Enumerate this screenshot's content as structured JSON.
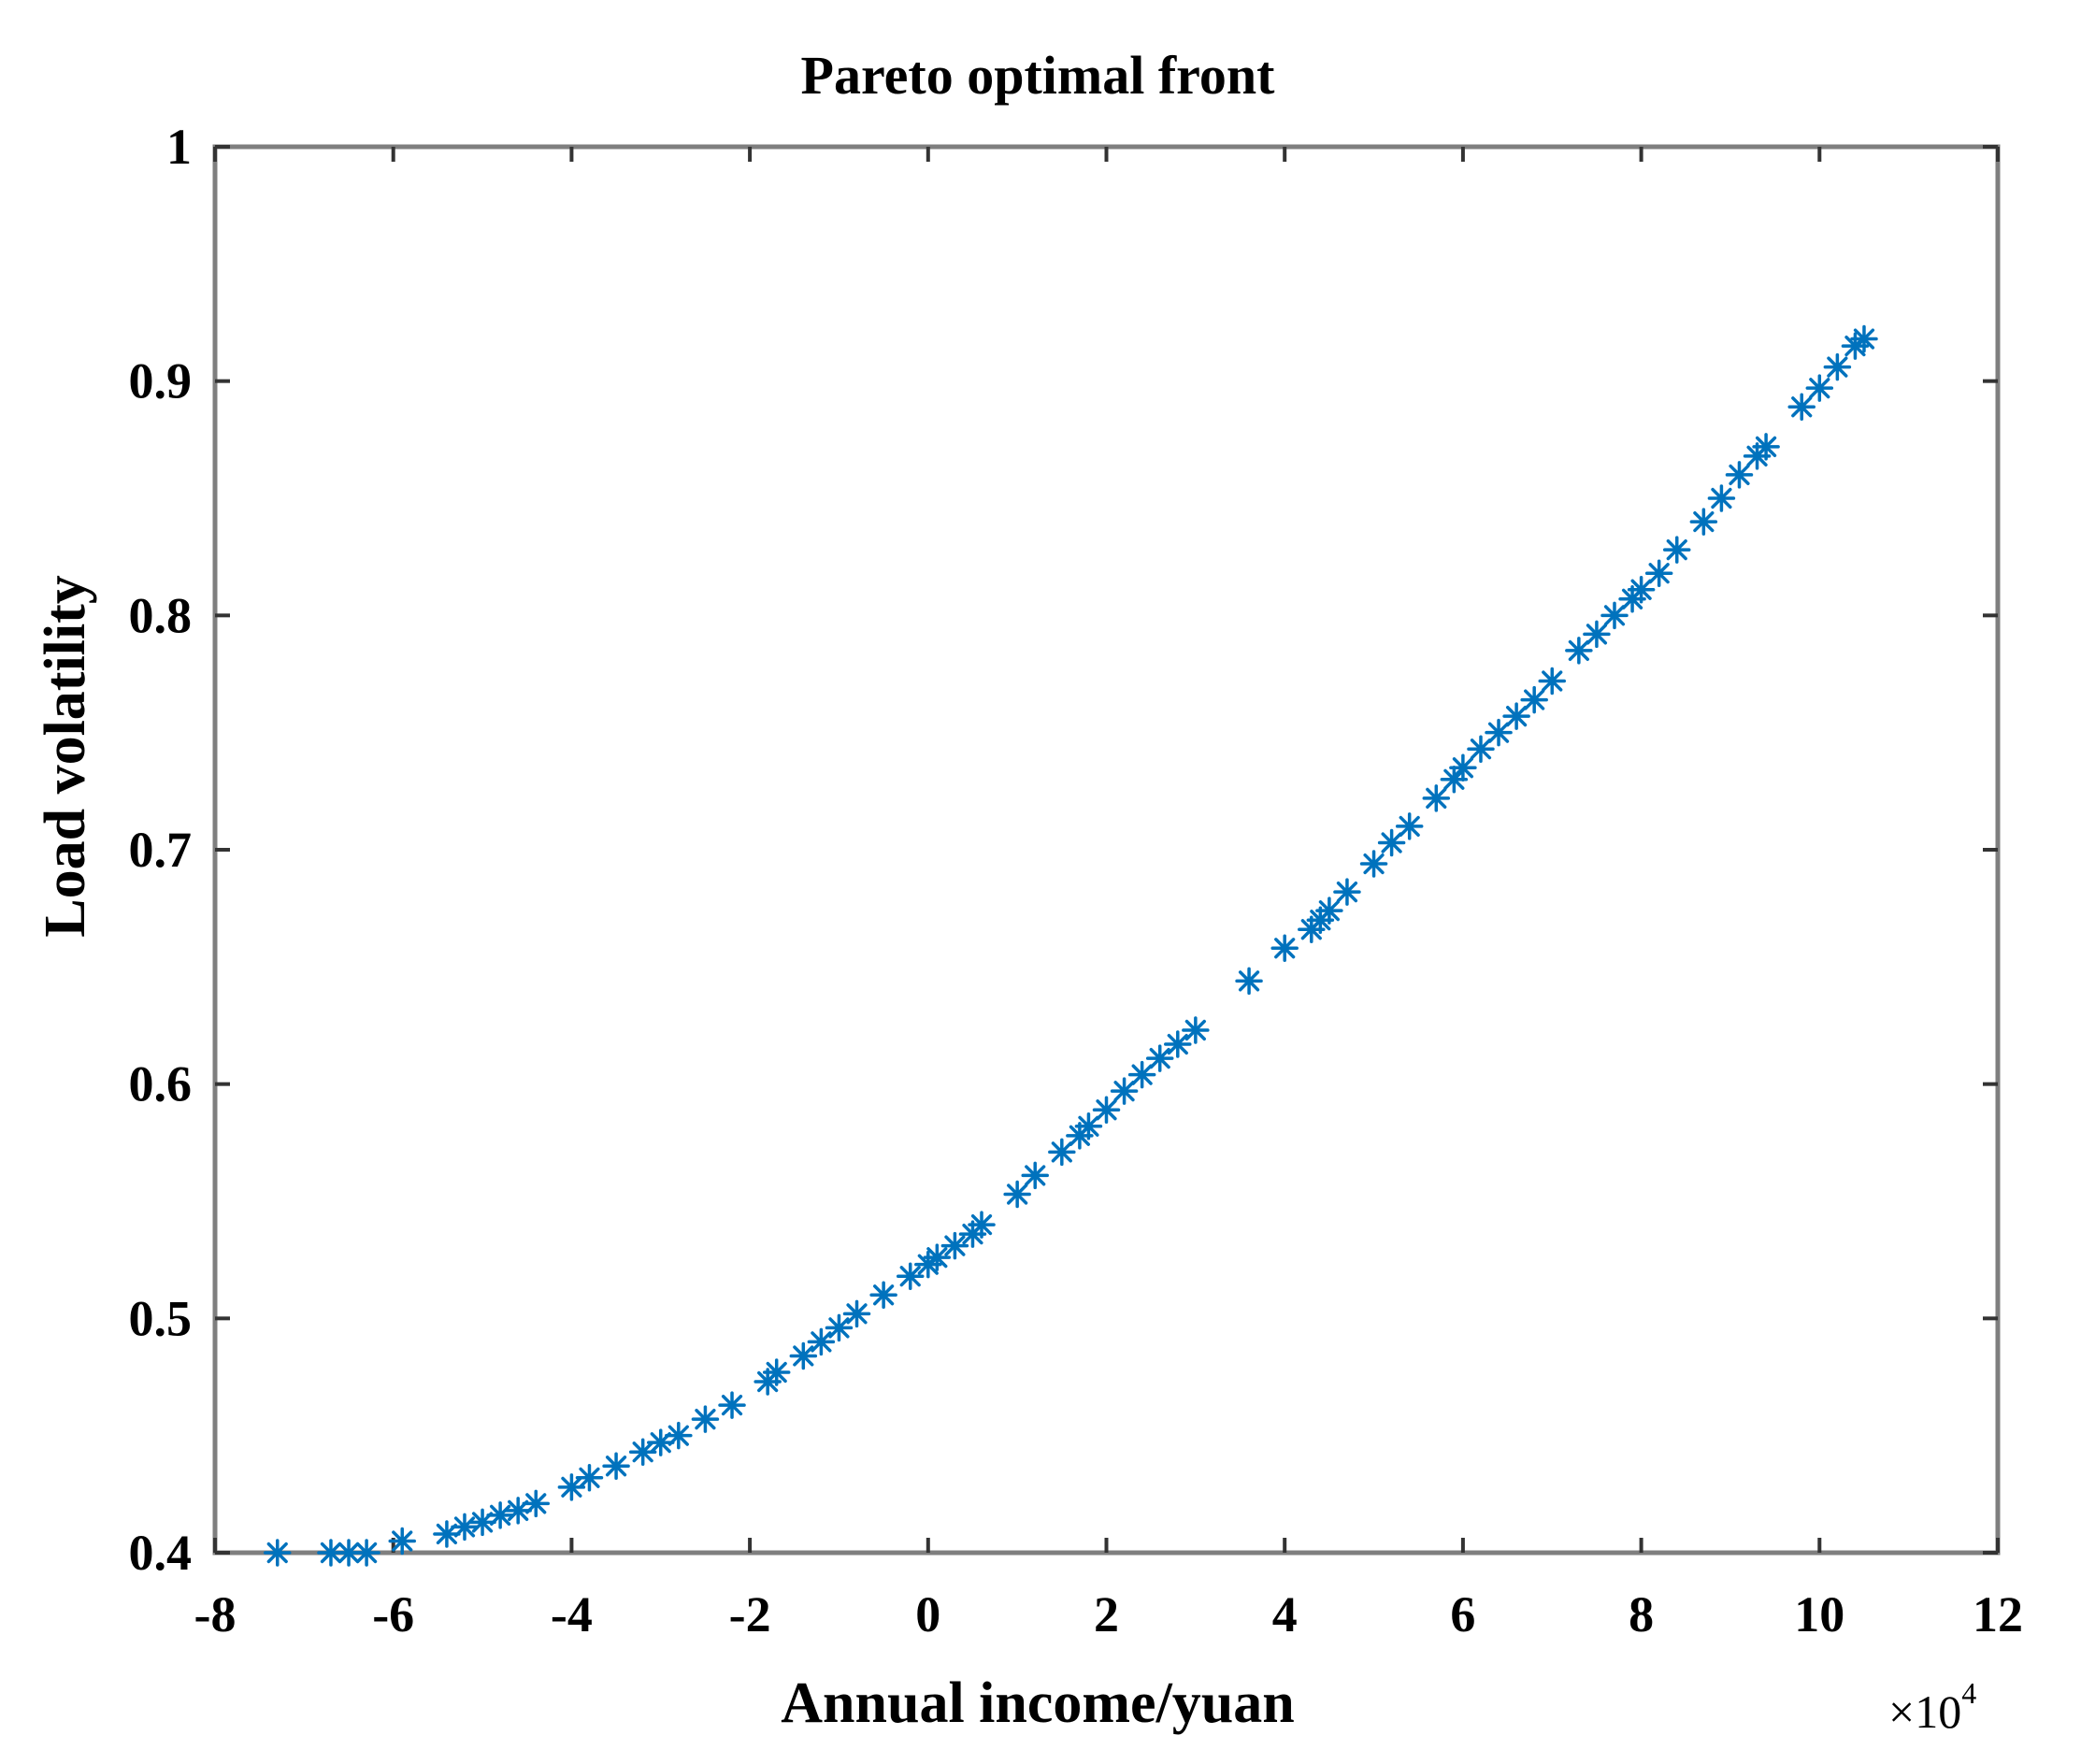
{
  "chart_data": {
    "type": "scatter",
    "title": "Pareto optimal front",
    "xlabel": "Annual income/yuan",
    "ylabel": "Load volatility",
    "x_multiplier": "×10",
    "x_multiplier_exp": "4",
    "xlim": [
      -8,
      12
    ],
    "ylim": [
      0.4,
      1
    ],
    "xticks": [
      "-8",
      "-6",
      "-4",
      "-2",
      "0",
      "2",
      "4",
      "6",
      "8",
      "10",
      "12"
    ],
    "yticks": [
      "0.4",
      "0.5",
      "0.6",
      "0.7",
      "0.8",
      "0.9",
      "1"
    ],
    "marker": "asterisk",
    "color": "#0072BD",
    "grid": false,
    "series": [
      {
        "x": [
          -7.3,
          -6.7,
          -6.5,
          -6.3,
          -5.9,
          -5.4,
          -5.2,
          -5.0,
          -4.8,
          -4.6,
          -4.4,
          -4.0,
          -3.8,
          -3.5,
          -3.2,
          -3.0,
          -2.8,
          -2.5,
          -2.2,
          -1.8,
          -1.7,
          -1.4,
          -1.2,
          -1.0,
          -0.8,
          -0.5,
          -0.2,
          0.0,
          0.1,
          0.3,
          0.5,
          0.6,
          1.0,
          1.2,
          1.5,
          1.7,
          1.8,
          2.0,
          2.2,
          2.4,
          2.6,
          2.8,
          3.0,
          3.6,
          4.0,
          4.3,
          4.4,
          4.5,
          4.7,
          5.0,
          5.2,
          5.4,
          5.7,
          5.9,
          6.0,
          6.2,
          6.4,
          6.6,
          6.8,
          7.0,
          7.3,
          7.5,
          7.7,
          7.9,
          8.0,
          8.2,
          8.4,
          8.7,
          8.9,
          9.1,
          9.3,
          9.4,
          9.8,
          10.0,
          10.2,
          10.4,
          10.5
        ],
        "y": [
          0.4,
          0.4,
          0.4,
          0.4,
          0.405,
          0.408,
          0.411,
          0.413,
          0.416,
          0.418,
          0.421,
          0.428,
          0.432,
          0.437,
          0.443,
          0.447,
          0.45,
          0.457,
          0.463,
          0.473,
          0.477,
          0.484,
          0.49,
          0.496,
          0.502,
          0.51,
          0.518,
          0.523,
          0.526,
          0.531,
          0.536,
          0.54,
          0.553,
          0.561,
          0.571,
          0.578,
          0.582,
          0.589,
          0.597,
          0.604,
          0.611,
          0.617,
          0.623,
          0.644,
          0.658,
          0.666,
          0.67,
          0.674,
          0.682,
          0.694,
          0.703,
          0.71,
          0.722,
          0.73,
          0.735,
          0.743,
          0.75,
          0.757,
          0.764,
          0.772,
          0.785,
          0.792,
          0.8,
          0.807,
          0.811,
          0.818,
          0.828,
          0.84,
          0.85,
          0.86,
          0.868,
          0.872,
          0.889,
          0.897,
          0.906,
          0.915,
          0.918
        ]
      }
    ]
  }
}
